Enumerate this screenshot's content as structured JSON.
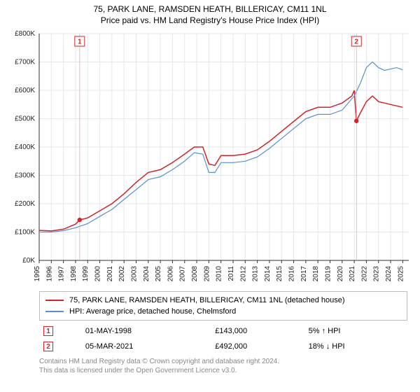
{
  "titles": {
    "line1": "75, PARK LANE, RAMSDEN HEATH, BILLERICAY, CM11 1NL",
    "line2": "Price paid vs. HM Land Registry's House Price Index (HPI)"
  },
  "chart": {
    "type": "line",
    "background_color": "#ffffff",
    "plot_background": "#ffffff",
    "grid_color": "#e5e8ea",
    "axis_color": "#333333",
    "label_fontsize": 10,
    "x": {
      "min": 1995,
      "max": 2025.5,
      "ticks": [
        1995,
        1996,
        1997,
        1998,
        1999,
        2000,
        2001,
        2002,
        2003,
        2004,
        2005,
        2006,
        2007,
        2008,
        2009,
        2010,
        2011,
        2012,
        2013,
        2014,
        2015,
        2016,
        2017,
        2018,
        2019,
        2020,
        2021,
        2022,
        2023,
        2024,
        2025
      ]
    },
    "y": {
      "min": 0,
      "max": 800000,
      "tick_step": 100000,
      "ticks": [
        0,
        100000,
        200000,
        300000,
        400000,
        500000,
        600000,
        700000,
        800000
      ],
      "tick_labels": [
        "£0K",
        "£100K",
        "£200K",
        "£300K",
        "£400K",
        "£500K",
        "£600K",
        "£700K",
        "£800K"
      ]
    },
    "series": [
      {
        "id": "price_paid",
        "label": "75, PARK LANE, RAMSDEN HEATH, BILLERICAY, CM11 1NL (detached house)",
        "color": "#d2232a",
        "line_width": 1.5,
        "points": [
          [
            1995.0,
            106000
          ],
          [
            1996.0,
            104000
          ],
          [
            1997.0,
            110000
          ],
          [
            1998.0,
            128000
          ],
          [
            1998.34,
            143000
          ],
          [
            1999.0,
            150000
          ],
          [
            2000.0,
            175000
          ],
          [
            2001.0,
            200000
          ],
          [
            2002.0,
            235000
          ],
          [
            2003.0,
            275000
          ],
          [
            2004.0,
            310000
          ],
          [
            2005.0,
            320000
          ],
          [
            2006.0,
            345000
          ],
          [
            2007.0,
            375000
          ],
          [
            2007.8,
            400000
          ],
          [
            2008.5,
            400000
          ],
          [
            2009.0,
            340000
          ],
          [
            2009.5,
            335000
          ],
          [
            2010.0,
            370000
          ],
          [
            2011.0,
            370000
          ],
          [
            2012.0,
            375000
          ],
          [
            2013.0,
            390000
          ],
          [
            2014.0,
            420000
          ],
          [
            2015.0,
            455000
          ],
          [
            2016.0,
            490000
          ],
          [
            2017.0,
            525000
          ],
          [
            2018.0,
            540000
          ],
          [
            2019.0,
            540000
          ],
          [
            2020.0,
            555000
          ],
          [
            2020.8,
            580000
          ],
          [
            2021.0,
            600000
          ],
          [
            2021.18,
            492000
          ],
          [
            2021.5,
            520000
          ],
          [
            2022.0,
            560000
          ],
          [
            2022.5,
            580000
          ],
          [
            2023.0,
            560000
          ],
          [
            2023.5,
            555000
          ],
          [
            2024.0,
            550000
          ],
          [
            2024.5,
            545000
          ],
          [
            2025.0,
            540000
          ]
        ]
      },
      {
        "id": "hpi",
        "label": "HPI: Average price, detached house, Chelmsford",
        "color": "#5a8fce",
        "line_width": 1.2,
        "points": [
          [
            1995.0,
            100000
          ],
          [
            1996.0,
            100000
          ],
          [
            1997.0,
            105000
          ],
          [
            1998.0,
            115000
          ],
          [
            1999.0,
            130000
          ],
          [
            2000.0,
            155000
          ],
          [
            2001.0,
            180000
          ],
          [
            2002.0,
            215000
          ],
          [
            2003.0,
            250000
          ],
          [
            2004.0,
            285000
          ],
          [
            2005.0,
            295000
          ],
          [
            2006.0,
            320000
          ],
          [
            2007.0,
            350000
          ],
          [
            2007.8,
            380000
          ],
          [
            2008.5,
            375000
          ],
          [
            2009.0,
            310000
          ],
          [
            2009.5,
            310000
          ],
          [
            2010.0,
            345000
          ],
          [
            2011.0,
            345000
          ],
          [
            2012.0,
            350000
          ],
          [
            2013.0,
            365000
          ],
          [
            2014.0,
            395000
          ],
          [
            2015.0,
            430000
          ],
          [
            2016.0,
            465000
          ],
          [
            2017.0,
            500000
          ],
          [
            2018.0,
            515000
          ],
          [
            2019.0,
            515000
          ],
          [
            2020.0,
            530000
          ],
          [
            2021.0,
            580000
          ],
          [
            2021.5,
            625000
          ],
          [
            2022.0,
            680000
          ],
          [
            2022.5,
            700000
          ],
          [
            2023.0,
            680000
          ],
          [
            2023.5,
            670000
          ],
          [
            2024.0,
            675000
          ],
          [
            2024.5,
            680000
          ],
          [
            2025.0,
            672000
          ]
        ]
      }
    ],
    "markers": [
      {
        "n": "1",
        "x": 1998.34,
        "y": 143000,
        "dot_color": "#d2232a",
        "box_top": true
      },
      {
        "n": "2",
        "x": 2021.18,
        "y": 492000,
        "dot_color": "#d2232a",
        "box_top": true
      }
    ]
  },
  "legend": {
    "rows": [
      {
        "color": "#d2232a",
        "label": "75, PARK LANE, RAMSDEN HEATH, BILLERICAY, CM11 1NL (detached house)"
      },
      {
        "color": "#5a8fce",
        "label": "HPI: Average price, detached house, Chelmsford"
      }
    ]
  },
  "transactions": {
    "rows": [
      {
        "n": "1",
        "date": "01-MAY-1998",
        "price": "£143,000",
        "delta": "5% ↑ HPI"
      },
      {
        "n": "2",
        "date": "05-MAR-2021",
        "price": "£492,000",
        "delta": "18% ↓ HPI"
      }
    ]
  },
  "footer": {
    "line1": "Contains HM Land Registry data © Crown copyright and database right 2024.",
    "line2": "This data is licensed under the Open Government Licence v3.0."
  }
}
